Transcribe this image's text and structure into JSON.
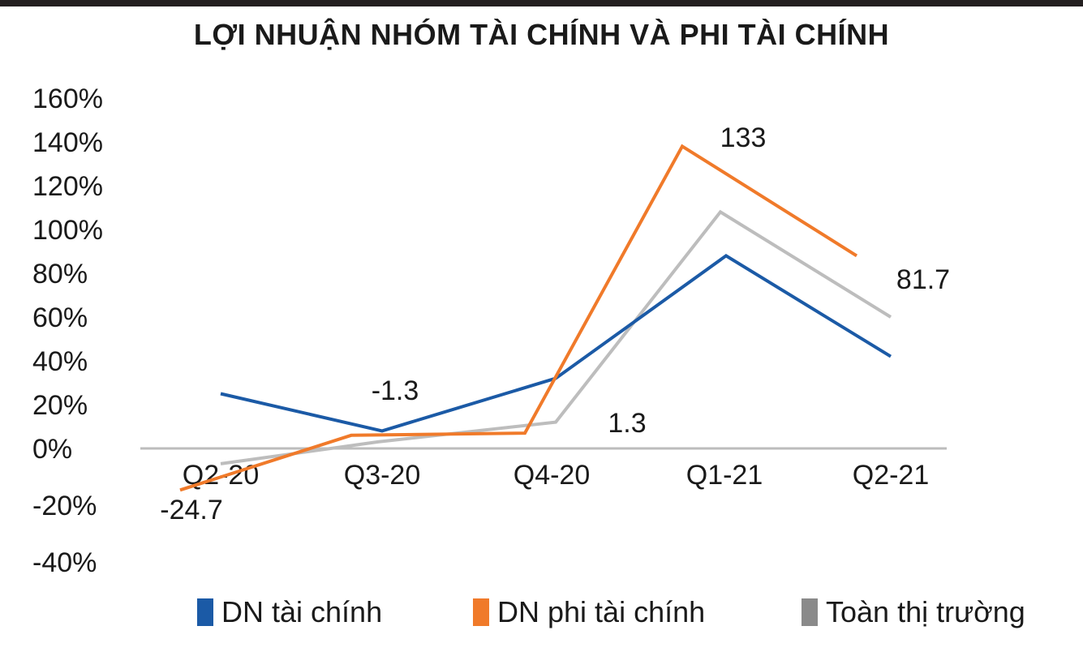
{
  "title": "LỢI NHUẬN NHÓM TÀI CHÍNH VÀ PHI TÀI CHÍNH",
  "chart_data": {
    "type": "line",
    "categories": [
      "Q2-20",
      "Q3-20",
      "Q4-20",
      "Q1-21",
      "Q2-21"
    ],
    "ylim": [
      -40,
      160
    ],
    "yticks": [
      160,
      140,
      120,
      100,
      80,
      60,
      40,
      20,
      0,
      -20,
      -40
    ],
    "ytick_labels": [
      "160%",
      "140%",
      "120%",
      "100%",
      "80%",
      "60%",
      "40%",
      "20%",
      "0%",
      "-20%",
      "-40%"
    ],
    "grid": false,
    "legend_position": "bottom",
    "series": [
      {
        "name": "DN tài chính",
        "color": "#1b5aa6",
        "values": [
          25,
          8,
          32,
          88,
          42
        ]
      },
      {
        "name": "DN phi tài chính",
        "color": "#f07a2a",
        "values": [
          -19,
          6,
          7,
          138,
          88
        ]
      },
      {
        "name": "Toàn thị trường",
        "color": "#bdbdbd",
        "values": [
          -7,
          3,
          12,
          108,
          60
        ]
      }
    ],
    "annotations": [
      "-24.7",
      "-1.3",
      "1.3",
      "133",
      "81.7"
    ]
  }
}
